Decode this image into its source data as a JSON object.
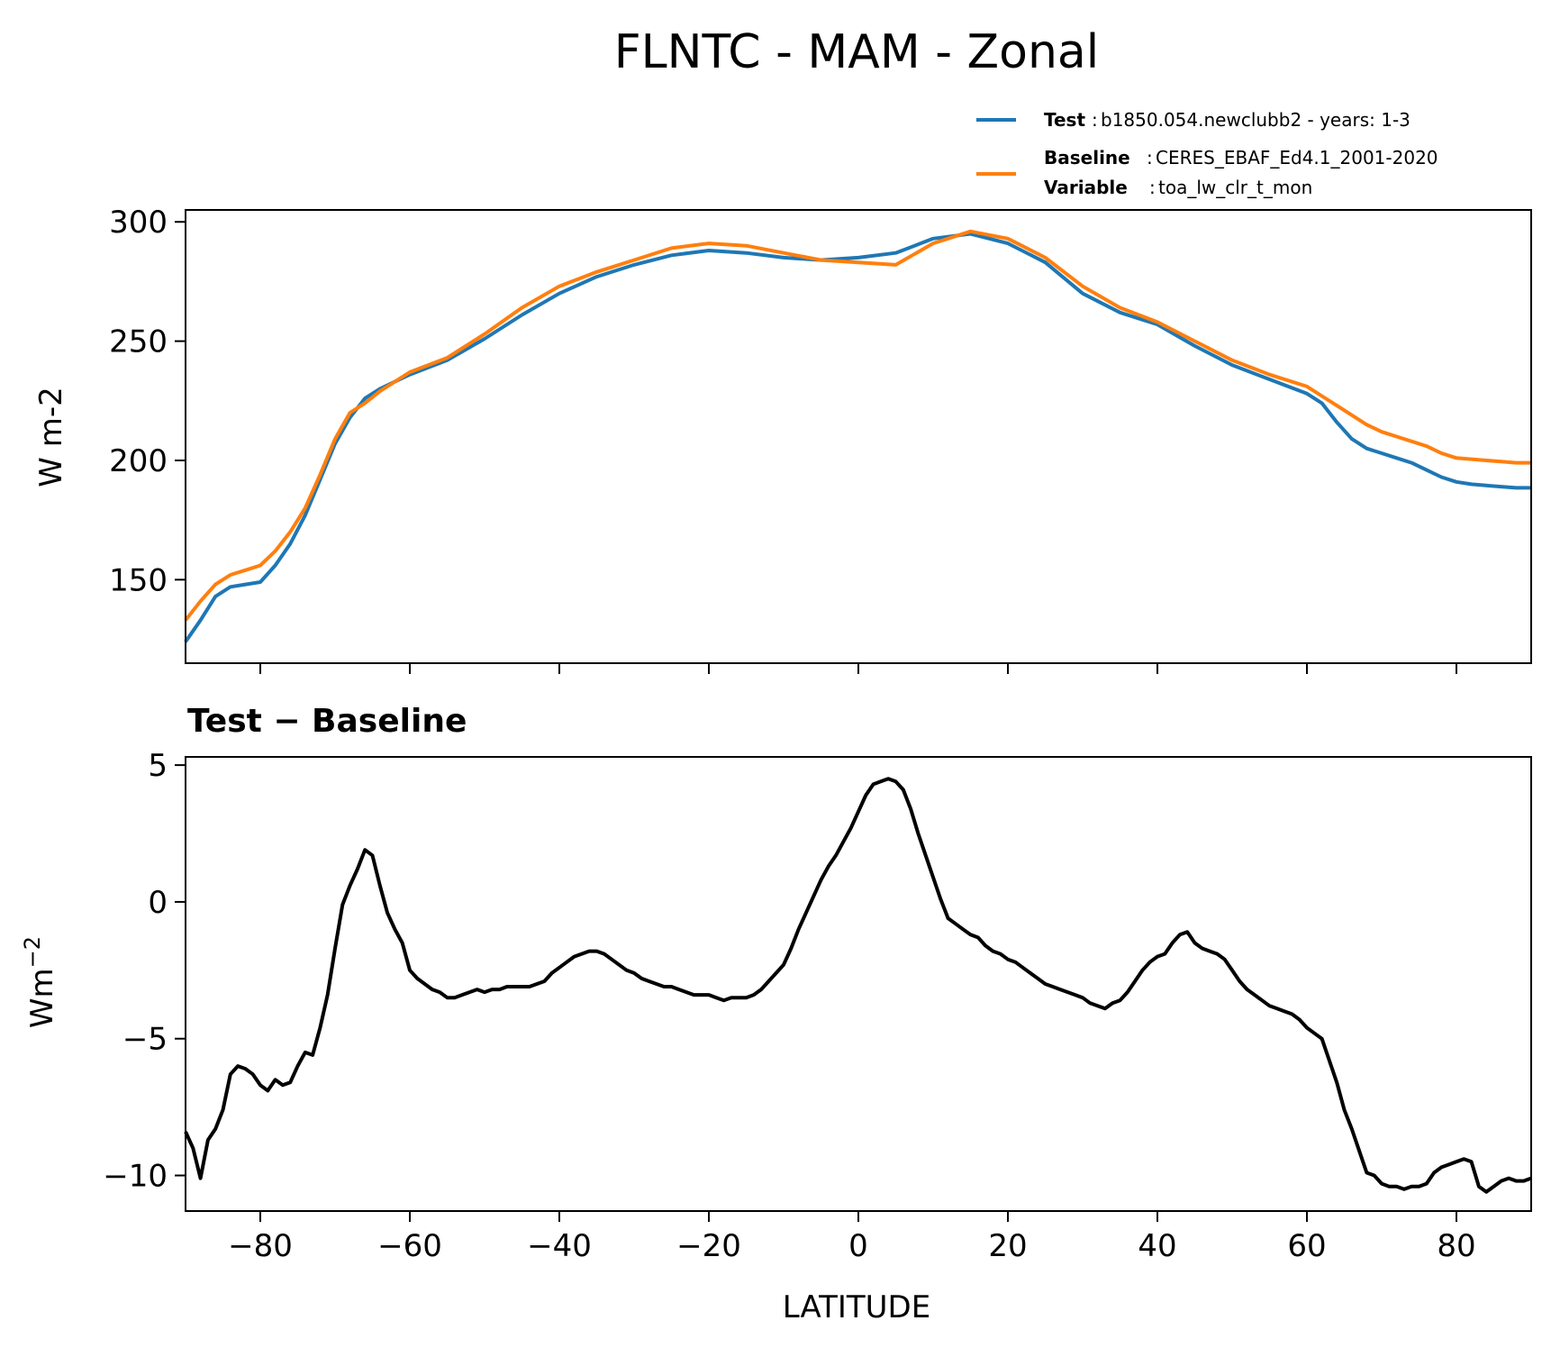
{
  "chart_data": [
    {
      "type": "line",
      "title": "FLNTC - MAM - Zonal",
      "xlabel": "",
      "ylabel": "W m-2",
      "xlim": [
        -90,
        90
      ],
      "ylim": [
        115,
        305
      ],
      "yticks": [
        150,
        200,
        250,
        300
      ],
      "ytick_labels": [
        "150",
        "200",
        "250",
        "300"
      ],
      "xticks": [
        -80,
        -60,
        -40,
        -20,
        0,
        20,
        40,
        60,
        80
      ],
      "grid": false,
      "legend": {
        "placement": "above-top-right",
        "entries": [
          {
            "lines": [
              {
                "label": "Test",
                "text": "b1850.054.newclubb2 - years: 1-3"
              }
            ]
          },
          {
            "lines": [
              {
                "label": "Baseline",
                "text": "CERES_EBAF_Ed4.1_2001-2020"
              },
              {
                "label": "Variable",
                "text": "toa_lw_clr_t_mon"
              }
            ]
          }
        ]
      },
      "series": [
        {
          "name": "Test",
          "color": "#1f77b4",
          "x": [
            -90,
            -88,
            -86,
            -84,
            -82,
            -80,
            -78,
            -76,
            -74,
            -72,
            -70,
            -68,
            -66,
            -64,
            -62,
            -60,
            -55,
            -50,
            -45,
            -40,
            -35,
            -30,
            -25,
            -20,
            -15,
            -10,
            -5,
            0,
            5,
            10,
            15,
            20,
            25,
            30,
            35,
            40,
            45,
            50,
            55,
            60,
            62,
            64,
            66,
            68,
            70,
            72,
            74,
            76,
            78,
            80,
            82,
            84,
            86,
            88,
            90
          ],
          "y": [
            124,
            133,
            143,
            147,
            148,
            149,
            156,
            165,
            177,
            192,
            207,
            218,
            226,
            230,
            233,
            236,
            242,
            251,
            261,
            270,
            277,
            282,
            286,
            288,
            287,
            285,
            284,
            285,
            287,
            293,
            295,
            291,
            283,
            270,
            262,
            257,
            248,
            240,
            234,
            228,
            224,
            216,
            209,
            205,
            203,
            201,
            199,
            196,
            193,
            191,
            190,
            189.5,
            189,
            188.5,
            188.5
          ]
        },
        {
          "name": "Baseline",
          "color": "#ff7f0e",
          "x": [
            -90,
            -88,
            -86,
            -84,
            -82,
            -80,
            -78,
            -76,
            -74,
            -72,
            -70,
            -68,
            -66,
            -64,
            -62,
            -60,
            -55,
            -50,
            -45,
            -40,
            -35,
            -30,
            -25,
            -20,
            -15,
            -10,
            -5,
            0,
            5,
            10,
            15,
            20,
            25,
            30,
            35,
            40,
            45,
            50,
            55,
            60,
            62,
            64,
            66,
            68,
            70,
            72,
            74,
            76,
            78,
            80,
            82,
            84,
            86,
            88,
            90
          ],
          "y": [
            133,
            141,
            148,
            152,
            154,
            156,
            162,
            170,
            180,
            194,
            209,
            220,
            224,
            229,
            233,
            237,
            243,
            253,
            264,
            273,
            279,
            284,
            289,
            291,
            290,
            287,
            284,
            283,
            282,
            291,
            296,
            293,
            285,
            273,
            264,
            258,
            250,
            242,
            236,
            231,
            227,
            223,
            219,
            215,
            212,
            210,
            208,
            206,
            203,
            201,
            200.5,
            200,
            199.5,
            199,
            199
          ]
        }
      ]
    },
    {
      "type": "line",
      "title": "Test − Baseline",
      "xlabel": "LATITUDE",
      "ylabel": "Wm",
      "ylabel_sup": "−2",
      "xlim": [
        -90,
        90
      ],
      "ylim": [
        -11.3,
        5.3
      ],
      "yticks": [
        5,
        0,
        -5,
        -10
      ],
      "ytick_labels": [
        "5",
        "0",
        "−5",
        "−10"
      ],
      "xticks": [
        -80,
        -60,
        -40,
        -20,
        0,
        20,
        40,
        60,
        80
      ],
      "xtick_labels": [
        "−80",
        "−60",
        "−40",
        "−20",
        "0",
        "20",
        "40",
        "60",
        "80"
      ],
      "grid": false,
      "series": [
        {
          "color": "#000000",
          "x": [
            -90,
            -89,
            -88,
            -87,
            -86,
            -85,
            -84,
            -83,
            -82,
            -81,
            -80,
            -79,
            -78,
            -77,
            -76,
            -75,
            -74,
            -73,
            -72,
            -71,
            -70,
            -69,
            -68,
            -67,
            -66,
            -65,
            -64,
            -63,
            -62,
            -61,
            -60,
            -59,
            -58,
            -57,
            -56,
            -55,
            -54,
            -53,
            -52,
            -51,
            -50,
            -49,
            -48,
            -47,
            -46,
            -45,
            -44,
            -43,
            -42,
            -41,
            -40,
            -39,
            -38,
            -37,
            -36,
            -35,
            -34,
            -33,
            -32,
            -31,
            -30,
            -29,
            -28,
            -27,
            -26,
            -25,
            -24,
            -23,
            -22,
            -21,
            -20,
            -19,
            -18,
            -17,
            -16,
            -15,
            -14,
            -13,
            -12,
            -11,
            -10,
            -9,
            -8,
            -7,
            -6,
            -5,
            -4,
            -3,
            -2,
            -1,
            0,
            1,
            2,
            3,
            4,
            5,
            6,
            7,
            8,
            9,
            10,
            11,
            12,
            13,
            14,
            15,
            16,
            17,
            18,
            19,
            20,
            21,
            22,
            23,
            24,
            25,
            26,
            27,
            28,
            29,
            30,
            31,
            32,
            33,
            34,
            35,
            36,
            37,
            38,
            39,
            40,
            41,
            42,
            43,
            44,
            45,
            46,
            47,
            48,
            49,
            50,
            51,
            52,
            53,
            54,
            55,
            56,
            57,
            58,
            59,
            60,
            61,
            62,
            63,
            64,
            65,
            66,
            67,
            68,
            69,
            70,
            71,
            72,
            73,
            74,
            75,
            76,
            77,
            78,
            79,
            80,
            81,
            82,
            83,
            84,
            85,
            86,
            87,
            88,
            89,
            90
          ],
          "y": [
            -8.4,
            -9.0,
            -10.1,
            -8.7,
            -8.3,
            -7.6,
            -6.3,
            -6.0,
            -6.1,
            -6.3,
            -6.7,
            -6.9,
            -6.5,
            -6.7,
            -6.6,
            -6.0,
            -5.5,
            -5.6,
            -4.6,
            -3.4,
            -1.7,
            -0.1,
            0.6,
            1.2,
            1.9,
            1.7,
            0.6,
            -0.4,
            -1.0,
            -1.5,
            -2.5,
            -2.8,
            -3.0,
            -3.2,
            -3.3,
            -3.5,
            -3.5,
            -3.4,
            -3.3,
            -3.2,
            -3.3,
            -3.2,
            -3.2,
            -3.1,
            -3.1,
            -3.1,
            -3.1,
            -3.0,
            -2.9,
            -2.6,
            -2.4,
            -2.2,
            -2.0,
            -1.9,
            -1.8,
            -1.8,
            -1.9,
            -2.1,
            -2.3,
            -2.5,
            -2.6,
            -2.8,
            -2.9,
            -3.0,
            -3.1,
            -3.1,
            -3.2,
            -3.3,
            -3.4,
            -3.4,
            -3.4,
            -3.5,
            -3.6,
            -3.5,
            -3.5,
            -3.5,
            -3.4,
            -3.2,
            -2.9,
            -2.6,
            -2.3,
            -1.7,
            -1.0,
            -0.4,
            0.2,
            0.8,
            1.3,
            1.7,
            2.2,
            2.7,
            3.3,
            3.9,
            4.3,
            4.4,
            4.5,
            4.4,
            4.1,
            3.4,
            2.5,
            1.7,
            0.9,
            0.1,
            -0.6,
            -0.8,
            -1.0,
            -1.2,
            -1.3,
            -1.6,
            -1.8,
            -1.9,
            -2.1,
            -2.2,
            -2.4,
            -2.6,
            -2.8,
            -3.0,
            -3.1,
            -3.2,
            -3.3,
            -3.4,
            -3.5,
            -3.7,
            -3.8,
            -3.9,
            -3.7,
            -3.6,
            -3.3,
            -2.9,
            -2.5,
            -2.2,
            -2.0,
            -1.9,
            -1.5,
            -1.2,
            -1.1,
            -1.5,
            -1.7,
            -1.8,
            -1.9,
            -2.1,
            -2.5,
            -2.9,
            -3.2,
            -3.4,
            -3.6,
            -3.8,
            -3.9,
            -4.0,
            -4.1,
            -4.3,
            -4.6,
            -4.8,
            -5.0,
            -5.8,
            -6.6,
            -7.6,
            -8.3,
            -9.1,
            -9.9,
            -10.0,
            -10.3,
            -10.4,
            -10.4,
            -10.5,
            -10.4,
            -10.4,
            -10.3,
            -9.9,
            -9.7,
            -9.6,
            -9.5,
            -9.4,
            -9.5,
            -10.4,
            -10.6,
            -10.4,
            -10.2,
            -10.1,
            -10.2,
            -10.2,
            -10.1
          ]
        }
      ]
    }
  ]
}
